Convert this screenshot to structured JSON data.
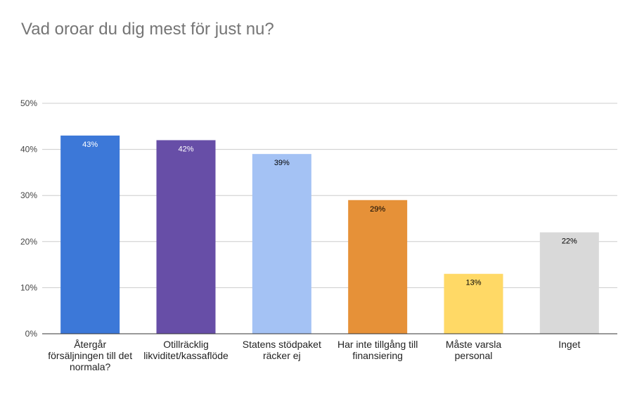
{
  "chart_data": {
    "type": "bar",
    "title": "Vad oroar du dig mest för just nu?",
    "xlabel": "",
    "ylabel": "",
    "ylim": [
      0,
      50
    ],
    "yticks": [
      0,
      10,
      20,
      30,
      40,
      50
    ],
    "ytick_labels": [
      "0%",
      "10%",
      "20%",
      "30%",
      "40%",
      "50%"
    ],
    "grid": true,
    "legend": "none",
    "categories": [
      [
        "Återgår",
        "försäljningen till det",
        "normala?"
      ],
      [
        "Otillräcklig",
        "likviditet/kassaflöde"
      ],
      [
        "Statens stödpaket",
        "räcker ej"
      ],
      [
        "Har inte tillgång till",
        "finansiering"
      ],
      [
        "Måste varsla",
        "personal"
      ],
      [
        "Inget"
      ]
    ],
    "values": [
      43,
      42,
      39,
      29,
      13,
      22
    ],
    "data_labels": [
      "43%",
      "42%",
      "39%",
      "29%",
      "13%",
      "22%"
    ],
    "colors": [
      "#3c78d8",
      "#674ea7",
      "#a4c2f4",
      "#e69138",
      "#ffd966",
      "#d9d9d9"
    ],
    "label_colors": [
      "#ffffff",
      "#ffffff",
      "#000000",
      "#000000",
      "#000000",
      "#000000"
    ],
    "axis_color": "#333333",
    "grid_color": "#cccccc"
  }
}
